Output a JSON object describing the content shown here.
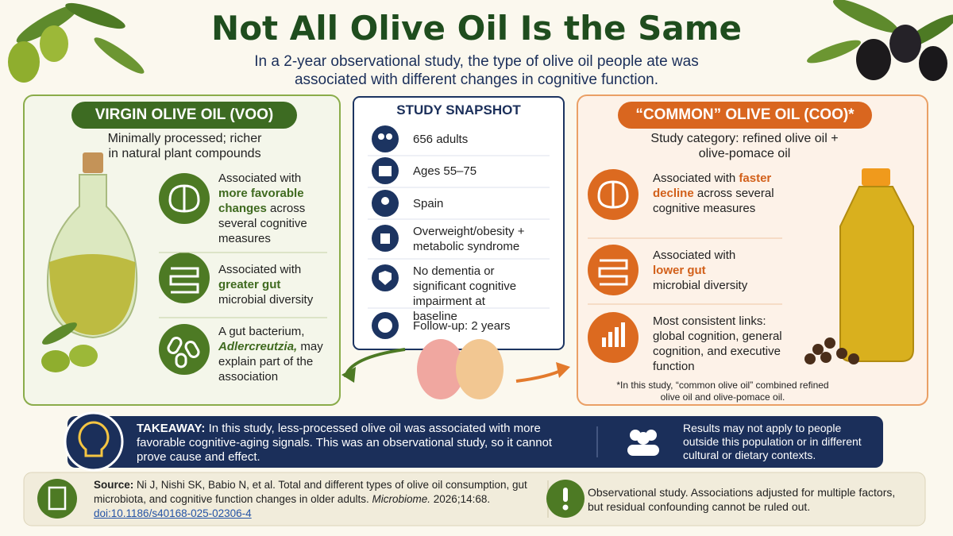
{
  "header": {
    "title": "Not All Olive Oil Is the Same",
    "subtitle": "In a 2-year observational study, the type of olive oil people ate was associated with different changes in cognitive function."
  },
  "voo": {
    "label": "VIRGIN OLIVE OIL (VOO)",
    "description": "Minimally processed; richer in natural plant compounds",
    "items": [
      {
        "lead": "Associated with",
        "highlight": "more favorable changes",
        "rest": "across several cognitive measures"
      },
      {
        "lead": "Associated with",
        "highlight": "greater gut",
        "rest": "microbial diversity"
      },
      {
        "lead": "A gut bacterium,",
        "highlight": "Adlercreutzia,",
        "rest": "may explain part of the association"
      }
    ]
  },
  "snapshot": {
    "title": "STUDY SNAPSHOT",
    "items": [
      "656 adults",
      "Ages 55–75",
      "Spain",
      "Overweight/obesity + metabolic syndrome",
      "No dementia or significant cognitive impairment at baseline",
      "Follow-up: 2 years"
    ]
  },
  "coo": {
    "label": "“COMMON” OLIVE OIL (COO)*",
    "description": "Study category: refined olive oil + olive-pomace oil",
    "items": [
      {
        "lead": "Associated with",
        "highlight": "faster decline",
        "rest": "across several cognitive measures"
      },
      {
        "lead": "Associated with",
        "highlight": "lower gut",
        "rest": "microbial diversity"
      },
      {
        "text": "Most consistent links: global cognition, general cognition, and executive function"
      }
    ],
    "footnote": "*In this study, “common olive oil” combined refined olive oil and olive-pomace oil."
  },
  "takeaway": {
    "label": "TAKEAWAY:",
    "text": "In this study, less-processed olive oil was associated with more favorable cognitive-aging signals. This was an observational study, so it cannot prove cause and effect.",
    "caveat": "Results may not apply to people outside this population or in different cultural or dietary contexts."
  },
  "source": {
    "label": "Source:",
    "citation": "Ni J, Nishi SK, Babio N, et al. Total and different types of olive oil consumption, gut microbiota, and cognitive function changes in older adults.",
    "journal": "Microbiome.",
    "volume": "2026;14:68.",
    "doi": "doi:10.1186/s40168-025-02306-4",
    "note": "Observational study. Associations adjusted for multiple factors, but residual confounding cannot be ruled out."
  }
}
